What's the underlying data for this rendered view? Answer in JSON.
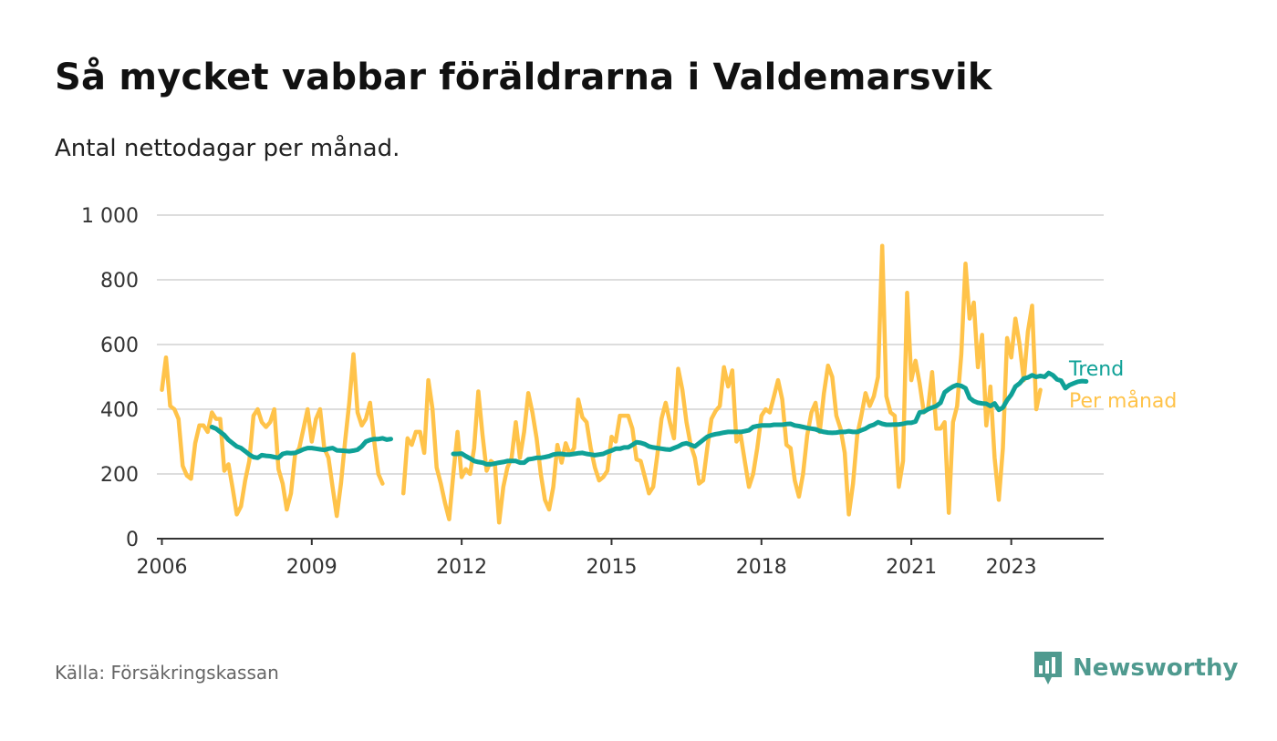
{
  "header": {
    "title": "Så mycket vabbar föräldrarna i Valdemarsvik",
    "subtitle": "Antal nettodagar per månad."
  },
  "footer": {
    "source": "Källa: Försäkringskassan",
    "brand": "Newsworthy",
    "brand_icon": "newsworthy-logo-icon",
    "brand_color": "#4f9a8f"
  },
  "chart_data": {
    "type": "line",
    "x_tick_labels": [
      "2006",
      "2009",
      "2012",
      "2015",
      "2018",
      "2021",
      "2023"
    ],
    "x_tick_years": [
      2006,
      2009,
      2012,
      2015,
      2018,
      2021,
      2023
    ],
    "y_ticks": [
      0,
      200,
      400,
      600,
      800,
      1000
    ],
    "y_tick_labels": [
      "0",
      "200",
      "400",
      "600",
      "800",
      "1 000"
    ],
    "ylim": [
      0,
      1000
    ],
    "grid": true,
    "legend": "direct labels at right end of lines",
    "series": [
      {
        "name": "Per månad",
        "color": "#ffc34a",
        "start": "2006-01",
        "values": [
          460,
          560,
          410,
          400,
          370,
          225,
          195,
          185,
          295,
          350,
          350,
          330,
          390,
          370,
          370,
          210,
          230,
          155,
          75,
          100,
          180,
          240,
          380,
          400,
          360,
          345,
          360,
          400,
          215,
          170,
          90,
          140,
          260,
          280,
          340,
          400,
          300,
          370,
          400,
          280,
          250,
          160,
          70,
          170,
          300,
          420,
          570,
          390,
          350,
          370,
          420,
          300,
          200,
          170,
          null,
          null,
          null,
          null,
          140,
          310,
          290,
          330,
          330,
          265,
          490,
          400,
          220,
          170,
          110,
          60,
          200,
          330,
          190,
          215,
          200,
          280,
          455,
          320,
          210,
          240,
          230,
          50,
          160,
          220,
          250,
          360,
          250,
          330,
          450,
          390,
          310,
          200,
          120,
          90,
          160,
          290,
          235,
          295,
          260,
          280,
          430,
          375,
          360,
          280,
          220,
          180,
          190,
          210,
          315,
          300,
          380,
          380,
          380,
          340,
          245,
          240,
          190,
          140,
          160,
          260,
          370,
          420,
          360,
          310,
          525,
          460,
          360,
          290,
          250,
          170,
          180,
          280,
          370,
          395,
          410,
          530,
          470,
          520,
          300,
          320,
          240,
          160,
          200,
          280,
          380,
          400,
          390,
          440,
          490,
          430,
          290,
          280,
          180,
          130,
          200,
          320,
          390,
          420,
          330,
          450,
          535,
          500,
          380,
          340,
          265,
          75,
          170,
          320,
          380,
          450,
          410,
          440,
          500,
          905,
          440,
          390,
          380,
          160,
          240,
          760,
          490,
          550,
          480,
          390,
          400,
          515,
          340,
          340,
          360,
          80,
          360,
          410,
          570,
          850,
          680,
          730,
          530,
          630,
          350,
          470,
          250,
          120,
          280,
          620,
          560,
          680,
          600,
          490,
          640,
          720,
          400,
          460
        ]
      },
      {
        "name": "Trend",
        "color": "#0fa197",
        "start": "2007-01",
        "values": [
          345,
          340,
          330,
          320,
          305,
          295,
          285,
          280,
          270,
          260,
          252,
          250,
          258,
          256,
          255,
          252,
          250,
          262,
          265,
          264,
          265,
          270,
          276,
          280,
          280,
          278,
          276,
          274,
          278,
          280,
          273,
          272,
          271,
          270,
          272,
          275,
          285,
          300,
          305,
          308,
          308,
          310,
          306,
          308,
          null,
          null,
          null,
          null,
          null,
          null,
          null,
          null,
          null,
          null,
          null,
          null,
          null,
          null,
          262,
          262,
          263,
          255,
          248,
          240,
          237,
          235,
          230,
          230,
          232,
          235,
          237,
          240,
          240,
          240,
          235,
          235,
          245,
          247,
          250,
          250,
          252,
          255,
          260,
          262,
          262,
          260,
          260,
          262,
          264,
          265,
          262,
          260,
          258,
          260,
          262,
          268,
          272,
          278,
          278,
          282,
          282,
          290,
          298,
          296,
          292,
          285,
          282,
          280,
          278,
          276,
          275,
          280,
          285,
          292,
          295,
          290,
          285,
          295,
          305,
          315,
          320,
          323,
          325,
          328,
          330,
          330,
          330,
          330,
          332,
          335,
          345,
          348,
          350,
          350,
          350,
          352,
          352,
          352,
          354,
          355,
          350,
          348,
          345,
          342,
          340,
          338,
          333,
          330,
          328,
          327,
          328,
          330,
          330,
          332,
          330,
          330,
          335,
          340,
          348,
          352,
          360,
          355,
          352,
          352,
          353,
          353,
          355,
          358,
          358,
          362,
          390,
          392,
          400,
          405,
          410,
          420,
          452,
          462,
          470,
          475,
          472,
          465,
          435,
          425,
          420,
          418,
          417,
          410,
          418,
          398,
          405,
          428,
          445,
          470,
          480,
          495,
          498,
          505,
          500,
          503,
          500,
          512,
          505,
          492,
          488,
          465,
          475,
          480,
          485,
          487,
          486
        ]
      }
    ]
  }
}
